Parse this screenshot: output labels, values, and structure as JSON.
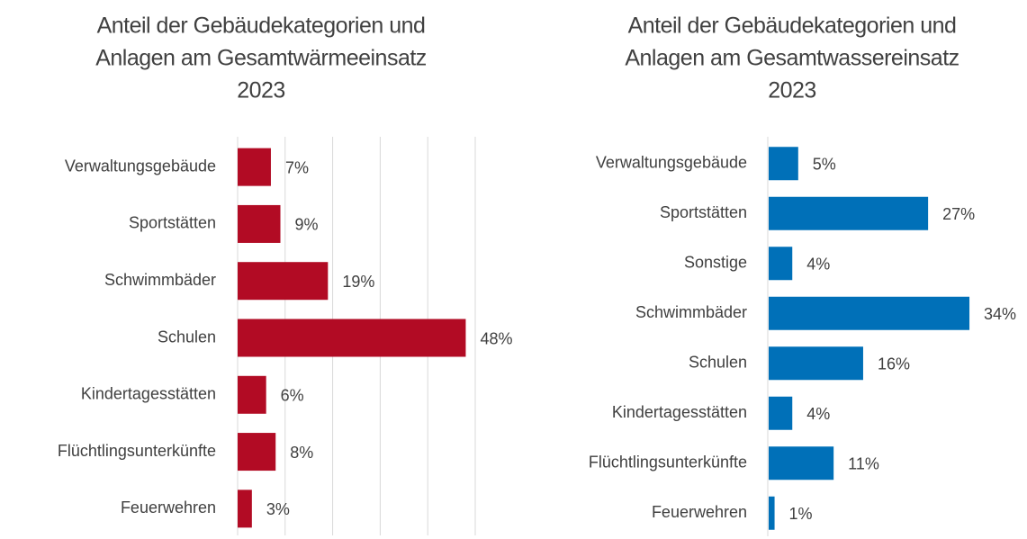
{
  "chart_data": [
    {
      "type": "bar",
      "orientation": "horizontal",
      "title": [
        "Anteil der Gebäudekategorien und",
        "Anlagen am Gesamtwärmeeinsatz",
        "2023"
      ],
      "categories": [
        "Verwaltungsgebäude",
        "Sportstätten",
        "Schwimmbäder",
        "Schulen",
        "Kindertagesstätten",
        "Flüchtlingsunterkünfte",
        "Feuerwehren"
      ],
      "values": [
        7,
        9,
        19,
        48,
        6,
        8,
        3
      ],
      "value_labels": [
        "7%",
        "9%",
        "19%",
        "48%",
        "6%",
        "8%",
        "3%"
      ],
      "color": "#b20b24",
      "xlim": [
        0,
        50
      ],
      "xticks": [
        0,
        10,
        20,
        30,
        40,
        50
      ],
      "grid": true
    },
    {
      "type": "bar",
      "orientation": "horizontal",
      "title": [
        "Anteil der Gebäudekategorien und",
        "Anlagen am Gesamtwassereinsatz",
        "2023"
      ],
      "categories": [
        "Verwaltungsgebäude",
        "Sportstätten",
        "Sonstige",
        "Schwimmbäder",
        "Schulen",
        "Kindertagesstätten",
        "Flüchtlingsunterkünfte",
        "Feuerwehren"
      ],
      "values": [
        5,
        27,
        4,
        34,
        16,
        4,
        11,
        1
      ],
      "value_labels": [
        "5%",
        "27%",
        "4%",
        "34%",
        "16%",
        "4%",
        "11%",
        "1%"
      ],
      "color": "#0070b8",
      "xlim": [
        0,
        40
      ],
      "grid": false
    }
  ]
}
